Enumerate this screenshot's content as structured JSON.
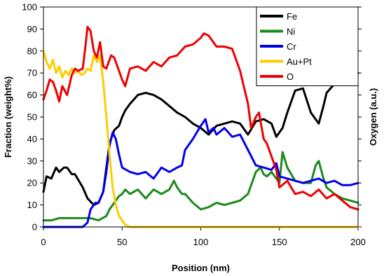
{
  "chart_data": {
    "type": "line",
    "title": "",
    "xlabel": "Position (nm)",
    "ylabel": "Fraction (weight%)",
    "y2label": "Oxygen (a.u.)",
    "xlim": [
      0,
      200
    ],
    "ylim": [
      0,
      100
    ],
    "x_ticks": [
      "0",
      "50",
      "100",
      "150",
      "200"
    ],
    "y_ticks": [
      "0",
      "10",
      "20",
      "30",
      "40",
      "50",
      "60",
      "70",
      "80",
      "90",
      "100"
    ],
    "grid": false,
    "legend_position": "top-right",
    "series": [
      {
        "name": "Fe",
        "color": "#000000",
        "x": [
          0,
          2,
          5,
          8,
          10,
          13,
          15,
          18,
          20,
          25,
          28,
          32,
          35,
          38,
          40,
          42,
          45,
          48,
          50,
          52,
          55,
          60,
          65,
          70,
          75,
          80,
          85,
          90,
          95,
          100,
          105,
          110,
          115,
          120,
          125,
          130,
          135,
          140,
          145,
          148,
          152,
          155,
          160,
          165,
          170,
          175,
          178,
          180,
          185,
          190,
          195,
          200
        ],
        "values": [
          16,
          23,
          22,
          27,
          25,
          27,
          27,
          24,
          24,
          18,
          13,
          10,
          11,
          16,
          27,
          38,
          44,
          46,
          50,
          53,
          56,
          60,
          61,
          60,
          58,
          55,
          52,
          50,
          47,
          45,
          42,
          46,
          47,
          48,
          47,
          42,
          48,
          49,
          47,
          41,
          45,
          52,
          62,
          63,
          52,
          47,
          55,
          61,
          65,
          67,
          70,
          70
        ]
      },
      {
        "name": "Ni",
        "color": "#1a8a1a",
        "x": [
          0,
          5,
          10,
          15,
          20,
          25,
          30,
          35,
          40,
          42,
          45,
          48,
          50,
          52,
          55,
          60,
          65,
          70,
          75,
          80,
          83,
          85,
          88,
          90,
          95,
          100,
          105,
          110,
          115,
          120,
          125,
          130,
          135,
          138,
          140,
          142,
          145,
          148,
          150,
          152,
          155,
          160,
          165,
          170,
          173,
          175,
          178,
          180,
          185,
          190,
          195,
          200
        ],
        "values": [
          3,
          3,
          4,
          4,
          4,
          4,
          4,
          3,
          5,
          8,
          11,
          14,
          15,
          17,
          15,
          17,
          13,
          17,
          15,
          17,
          21,
          18,
          15,
          15,
          11,
          8,
          9,
          11,
          10,
          11,
          12,
          15,
          25,
          27,
          24,
          23,
          25,
          22,
          20,
          34,
          27,
          21,
          20,
          20,
          28,
          30,
          22,
          18,
          15,
          13,
          12,
          11
        ]
      },
      {
        "name": "Cr",
        "color": "#0000ee",
        "x": [
          0,
          5,
          10,
          15,
          20,
          25,
          28,
          30,
          33,
          35,
          38,
          40,
          42,
          44,
          46,
          48,
          50,
          55,
          60,
          65,
          70,
          75,
          80,
          85,
          88,
          90,
          95,
          100,
          103,
          105,
          108,
          110,
          115,
          120,
          125,
          130,
          135,
          140,
          145,
          148,
          150,
          155,
          160,
          165,
          170,
          175,
          180,
          185,
          190,
          195,
          200
        ],
        "values": [
          0,
          0,
          0,
          0,
          0,
          0,
          2,
          8,
          11,
          11,
          16,
          25,
          37,
          43,
          40,
          33,
          27,
          25,
          24,
          25,
          22,
          27,
          25,
          27,
          28,
          35,
          40,
          46,
          49,
          43,
          45,
          42,
          45,
          41,
          42,
          35,
          28,
          27,
          26,
          29,
          23,
          22,
          21,
          20,
          21,
          22,
          20,
          21,
          19,
          19,
          20
        ]
      },
      {
        "name": "Au+Pt",
        "color": "#ffcc00",
        "x": [
          0,
          2,
          4,
          6,
          8,
          10,
          12,
          14,
          16,
          18,
          20,
          22,
          24,
          26,
          28,
          30,
          32,
          34,
          36,
          38,
          40,
          42,
          44,
          46,
          48,
          50,
          52,
          55,
          60,
          80,
          100,
          120,
          140,
          160,
          180,
          200
        ],
        "values": [
          80,
          75,
          72,
          76,
          70,
          73,
          68,
          71,
          69,
          72,
          70,
          71,
          69,
          70,
          72,
          71,
          78,
          75,
          78,
          66,
          50,
          33,
          18,
          10,
          5,
          3,
          1,
          0,
          0,
          0,
          0,
          0,
          0,
          0,
          0,
          0
        ]
      },
      {
        "name": "O",
        "color": "#ee0000",
        "x": [
          0,
          2,
          4,
          6,
          8,
          10,
          12,
          15,
          18,
          20,
          22,
          25,
          27,
          28,
          30,
          32,
          34,
          36,
          38,
          40,
          43,
          45,
          48,
          50,
          52,
          55,
          60,
          65,
          70,
          75,
          80,
          85,
          90,
          95,
          100,
          102,
          105,
          110,
          115,
          120,
          125,
          130,
          132,
          135,
          137,
          140,
          142,
          145,
          148,
          150,
          155,
          160,
          165,
          170,
          175,
          180,
          185,
          190,
          195,
          200
        ],
        "values": [
          58,
          62,
          67,
          66,
          62,
          57,
          64,
          60,
          69,
          72,
          71,
          72,
          84,
          91,
          89,
          80,
          77,
          84,
          73,
          72,
          78,
          77,
          71,
          67,
          64,
          72,
          73,
          71,
          75,
          73,
          77,
          78,
          82,
          83,
          86,
          88,
          87,
          82,
          82,
          81,
          71,
          56,
          45,
          50,
          52,
          40,
          38,
          32,
          26,
          18,
          21,
          15,
          16,
          14,
          17,
          13,
          15,
          12,
          9,
          8
        ]
      }
    ]
  }
}
